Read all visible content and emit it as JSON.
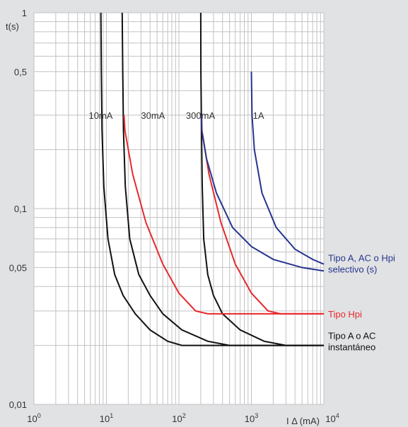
{
  "chart_data": {
    "type": "line",
    "x_scale": "log",
    "y_scale": "log",
    "xlim": [
      1,
      10000
    ],
    "ylim": [
      0.01,
      1
    ],
    "grid": true,
    "xlabel": "I Δ (mA)",
    "ylabel": "t(s)",
    "x_ticks": [
      {
        "v": 1,
        "base": "10",
        "exp": "0"
      },
      {
        "v": 10,
        "base": "10",
        "exp": "1"
      },
      {
        "v": 100,
        "base": "10",
        "exp": "2"
      },
      {
        "v": 1000,
        "base": "10",
        "exp": "3"
      },
      {
        "v": 10000,
        "base": "10",
        "exp": "4"
      }
    ],
    "y_ticks": [
      {
        "v": 1,
        "label": "1"
      },
      {
        "v": 0.5,
        "label": "0,5"
      },
      {
        "v": 0.1,
        "label": "0,1"
      },
      {
        "v": 0.05,
        "label": "0,05"
      },
      {
        "v": 0.01,
        "label": "0,01"
      }
    ],
    "colors": {
      "black": "#111111",
      "red": "#e8282c",
      "blue": "#26358f",
      "grid": "#c2c2c4",
      "plot_bg": "#ffffff",
      "page_bg": "#e1e2e3"
    },
    "rating_labels": [
      {
        "text": "10mA",
        "x": 5.7,
        "y": 0.3
      },
      {
        "text": "30mA",
        "x": 30,
        "y": 0.3
      },
      {
        "text": "300mA",
        "x": 125,
        "y": 0.3
      },
      {
        "text": "1A",
        "x": 1050,
        "y": 0.3
      }
    ],
    "legend": [
      {
        "lines": [
          "Tipo A, AC o Hpi",
          "selectivo (s)"
        ],
        "color": "#26358f",
        "y": 0.05
      },
      {
        "lines": [
          "Tipo Hpi"
        ],
        "color": "#e8282c",
        "y": 0.029
      },
      {
        "lines": [
          "Tipo A o AC",
          "instantáneo"
        ],
        "color": "#111111",
        "y": 0.02
      }
    ],
    "series": [
      {
        "color": "#111111",
        "points": [
          [
            8.4,
            1
          ],
          [
            8.5,
            0.5
          ],
          [
            8.7,
            0.25
          ],
          [
            9.2,
            0.13
          ],
          [
            10.5,
            0.07
          ],
          [
            13,
            0.046
          ],
          [
            17,
            0.036
          ],
          [
            25,
            0.029
          ],
          [
            40,
            0.024
          ],
          [
            70,
            0.021
          ],
          [
            110,
            0.02
          ],
          [
            10000,
            0.02
          ]
        ]
      },
      {
        "color": "#111111",
        "points": [
          [
            16.5,
            1
          ],
          [
            16.8,
            0.5
          ],
          [
            17.2,
            0.25
          ],
          [
            18.2,
            0.13
          ],
          [
            21,
            0.07
          ],
          [
            28,
            0.046
          ],
          [
            40,
            0.036
          ],
          [
            60,
            0.029
          ],
          [
            110,
            0.024
          ],
          [
            250,
            0.021
          ],
          [
            500,
            0.02
          ],
          [
            10000,
            0.02
          ]
        ]
      },
      {
        "color": "#111111",
        "points": [
          [
            200,
            1
          ],
          [
            201,
            0.5
          ],
          [
            205,
            0.25
          ],
          [
            210,
            0.13
          ],
          [
            220,
            0.07
          ],
          [
            250,
            0.046
          ],
          [
            300,
            0.036
          ],
          [
            400,
            0.029
          ],
          [
            700,
            0.024
          ],
          [
            1500,
            0.021
          ],
          [
            3000,
            0.02
          ],
          [
            10000,
            0.02
          ]
        ]
      },
      {
        "color": "#e8282c",
        "points": [
          [
            17.5,
            0.3
          ],
          [
            18,
            0.25
          ],
          [
            23,
            0.15
          ],
          [
            35,
            0.085
          ],
          [
            60,
            0.052
          ],
          [
            100,
            0.037
          ],
          [
            170,
            0.03
          ],
          [
            250,
            0.029
          ],
          [
            10000,
            0.029
          ]
        ]
      },
      {
        "color": "#e8282c",
        "points": [
          [
            205,
            0.3
          ],
          [
            208,
            0.25
          ],
          [
            260,
            0.15
          ],
          [
            380,
            0.085
          ],
          [
            600,
            0.052
          ],
          [
            1000,
            0.037
          ],
          [
            1700,
            0.03
          ],
          [
            2500,
            0.029
          ],
          [
            10000,
            0.029
          ]
        ]
      },
      {
        "color": "#26358f",
        "points": [
          [
            205,
            0.3
          ],
          [
            207,
            0.25
          ],
          [
            240,
            0.18
          ],
          [
            330,
            0.12
          ],
          [
            550,
            0.08
          ],
          [
            1000,
            0.064
          ],
          [
            2000,
            0.055
          ],
          [
            5000,
            0.05
          ],
          [
            10000,
            0.048
          ]
        ]
      },
      {
        "color": "#26358f",
        "points": [
          [
            1000,
            0.5
          ],
          [
            1020,
            0.3
          ],
          [
            1100,
            0.2
          ],
          [
            1400,
            0.12
          ],
          [
            2200,
            0.08
          ],
          [
            4000,
            0.062
          ],
          [
            7000,
            0.055
          ],
          [
            10000,
            0.052
          ]
        ]
      }
    ]
  }
}
